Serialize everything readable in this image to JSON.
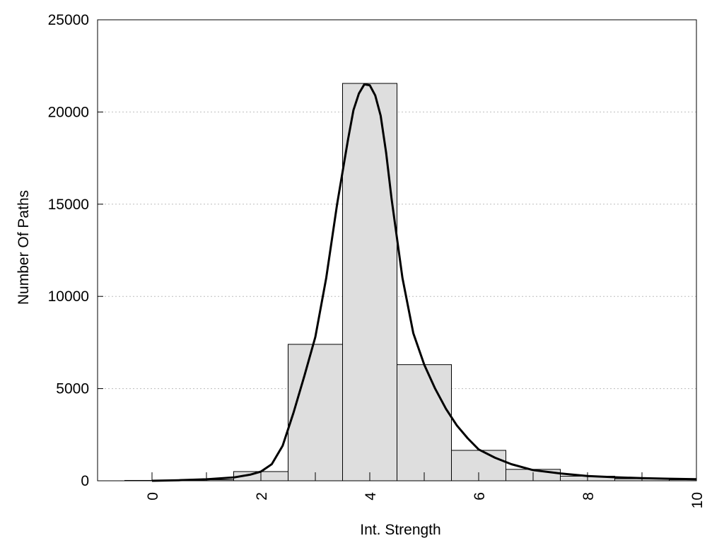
{
  "chart_data": {
    "type": "bar",
    "title": "",
    "xlabel": "Int. Strength",
    "ylabel": "Number Of Paths",
    "xlim": [
      -1,
      10
    ],
    "ylim": [
      0,
      25000
    ],
    "grid": "horizontal dotted",
    "x_ticks": [
      0,
      2,
      4,
      6,
      8,
      10
    ],
    "x_tick_labels": [
      "0",
      "2",
      "4",
      "6",
      "8",
      "10"
    ],
    "y_ticks": [
      0,
      5000,
      10000,
      15000,
      20000,
      25000
    ],
    "y_tick_labels": [
      "0",
      "5000",
      "10000",
      "15000",
      "20000",
      "25000"
    ],
    "bars": {
      "x": [
        0,
        1,
        2,
        3,
        4,
        5,
        6,
        7,
        8,
        9,
        10
      ],
      "values": [
        20,
        60,
        500,
        7400,
        21550,
        6300,
        1650,
        620,
        250,
        110,
        60
      ],
      "fill_color": "#dedede",
      "edge_color": "#000000"
    },
    "fit_curve": {
      "color": "#000000",
      "x": [
        0,
        0.5,
        1,
        1.5,
        1.8,
        2,
        2.2,
        2.4,
        2.6,
        2.8,
        3,
        3.2,
        3.4,
        3.6,
        3.7,
        3.8,
        3.9,
        4,
        4.1,
        4.2,
        4.3,
        4.4,
        4.6,
        4.8,
        5,
        5.2,
        5.4,
        5.6,
        5.8,
        6,
        6.3,
        6.6,
        7,
        7.5,
        8,
        8.5,
        9,
        9.5,
        10
      ],
      "y": [
        0,
        30,
        80,
        180,
        330,
        500,
        900,
        1900,
        3700,
        5700,
        7800,
        11000,
        15000,
        18500,
        20100,
        21000,
        21500,
        21450,
        20900,
        19800,
        17800,
        15300,
        11000,
        8000,
        6300,
        5000,
        3900,
        3000,
        2300,
        1700,
        1250,
        900,
        580,
        400,
        260,
        190,
        140,
        110,
        90
      ]
    }
  }
}
